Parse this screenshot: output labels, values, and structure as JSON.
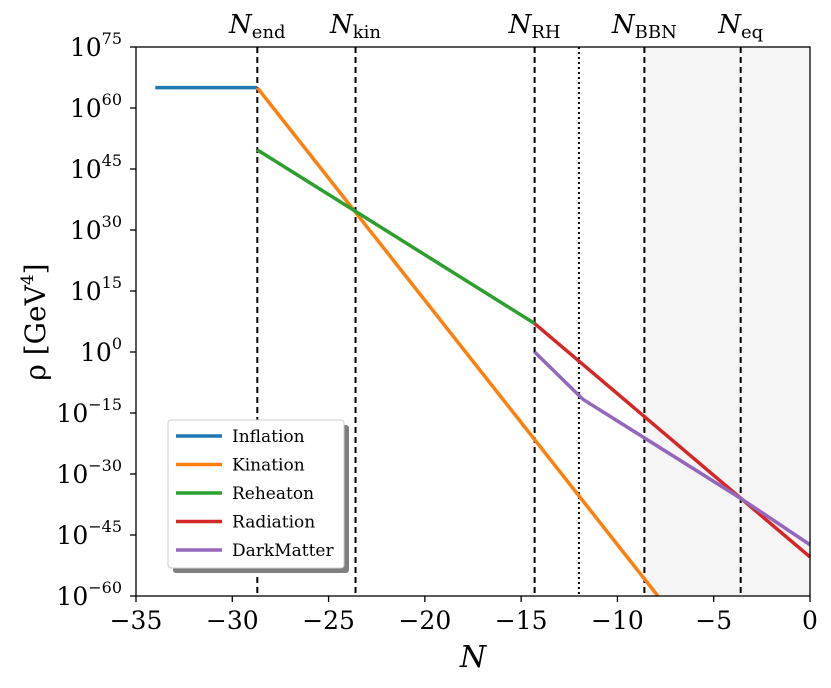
{
  "chart_data": {
    "type": "line",
    "xlabel": "N",
    "ylabel": {
      "main": "ρ [GeV",
      "sup": "4",
      "close": "]"
    },
    "xlim": [
      -35,
      0
    ],
    "ylim_log10": [
      -60,
      75
    ],
    "xticks": [
      {
        "value": -35,
        "label": "−35"
      },
      {
        "value": -30,
        "label": "−30"
      },
      {
        "value": -25,
        "label": "−25"
      },
      {
        "value": -20,
        "label": "−20"
      },
      {
        "value": -15,
        "label": "−15"
      },
      {
        "value": -10,
        "label": "−10"
      },
      {
        "value": -5,
        "label": "−5"
      },
      {
        "value": 0,
        "label": "0"
      }
    ],
    "yticks": [
      {
        "exp": 75,
        "base": "10",
        "sup": "75"
      },
      {
        "exp": 60,
        "base": "10",
        "sup": "60"
      },
      {
        "exp": 45,
        "base": "10",
        "sup": "45"
      },
      {
        "exp": 30,
        "base": "10",
        "sup": "30"
      },
      {
        "exp": 15,
        "base": "10",
        "sup": "15"
      },
      {
        "exp": 0,
        "base": "10",
        "sup": "0"
      },
      {
        "exp": -15,
        "base": "10",
        "sup": "−15"
      },
      {
        "exp": -30,
        "base": "10",
        "sup": "−30"
      },
      {
        "exp": -45,
        "base": "10",
        "sup": "−45"
      },
      {
        "exp": -60,
        "base": "10",
        "sup": "−60"
      }
    ],
    "series": [
      {
        "name": "Inflation",
        "color": "#1f77b4",
        "points": [
          [
            -34.0,
            65.0
          ],
          [
            -28.7,
            65.0
          ]
        ]
      },
      {
        "name": "Kination",
        "color": "#ff7f0e",
        "points": [
          [
            -28.7,
            65.0
          ],
          [
            -7.9,
            -60.0
          ]
        ]
      },
      {
        "name": "Reheaton",
        "color": "#2ca02c",
        "points": [
          [
            -28.7,
            49.7
          ],
          [
            -14.3,
            7.0
          ]
        ]
      },
      {
        "name": "Radiation",
        "color": "#d62728",
        "points": [
          [
            -14.3,
            7.0
          ],
          [
            0.0,
            -50.4
          ]
        ]
      },
      {
        "name": "DarkMatter",
        "color": "#9467bd",
        "points": [
          [
            -14.3,
            0.0
          ],
          [
            -11.8,
            -11.6
          ],
          [
            -3.6,
            -36.0
          ],
          [
            0.0,
            -47.4
          ]
        ]
      }
    ],
    "vlines": [
      {
        "x": -28.7,
        "label": "N",
        "sub": "end",
        "style": "dashed"
      },
      {
        "x": -23.6,
        "label": "N",
        "sub": "kin",
        "style": "dashed"
      },
      {
        "x": -14.3,
        "label": "N",
        "sub": "RH",
        "style": "dashed"
      },
      {
        "x": -12.0,
        "label": "",
        "sub": "",
        "style": "dotted"
      },
      {
        "x": -8.6,
        "label": "N",
        "sub": "BBN",
        "style": "dashed"
      },
      {
        "x": -3.6,
        "label": "N",
        "sub": "eq",
        "style": "dashed"
      }
    ],
    "shaded_region": {
      "x_start": -8.6,
      "x_end": 0,
      "color": "#f5f5f5"
    },
    "legend": {
      "position": "lower-left",
      "entries": [
        "Inflation",
        "Kination",
        "Reheaton",
        "Radiation",
        "DarkMatter"
      ]
    }
  }
}
